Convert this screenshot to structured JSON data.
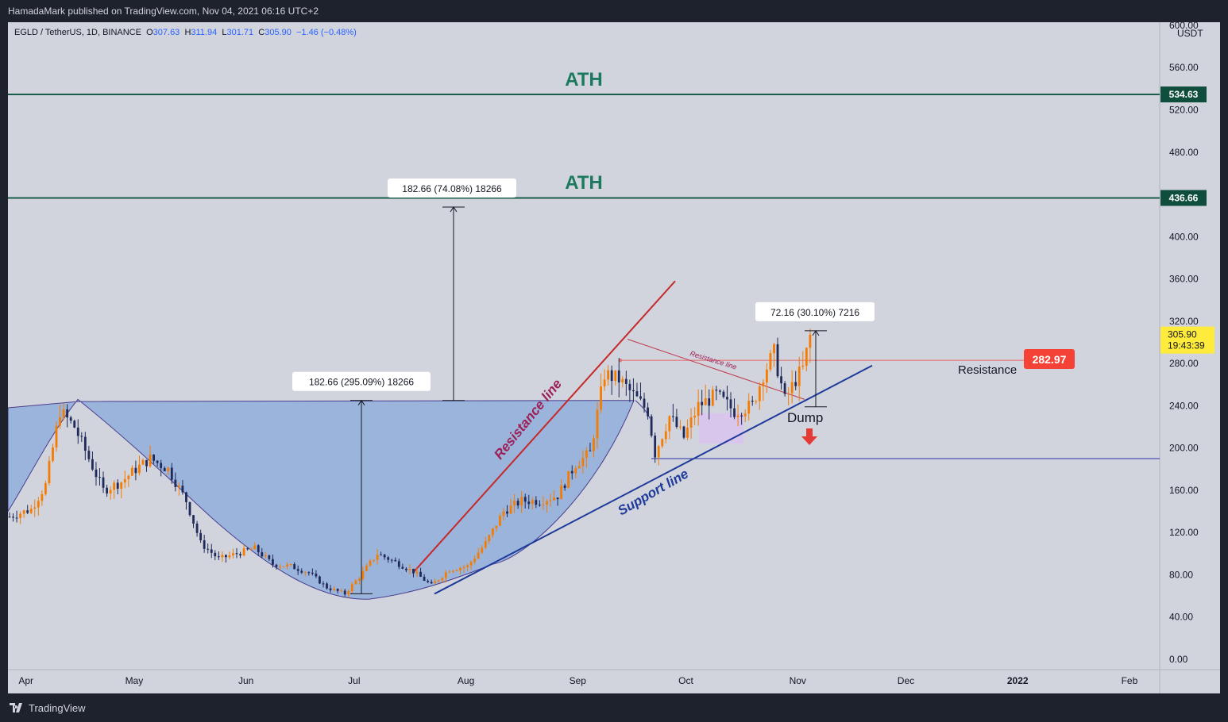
{
  "header": {
    "published": "HamadaMark published on TradingView.com, Nov 04, 2021 06:16 UTC+2"
  },
  "footer": {
    "brand": "TradingView"
  },
  "colors": {
    "up": "#f57c00",
    "down": "#1f2a5a",
    "area_fill": "#92aedc",
    "ath_line": "#1a5c4a",
    "ath_text": "#1b7a5e",
    "resistance_red": "#c62828",
    "support_blue": "#1e3a9a",
    "badge_red": "#f44336",
    "price_yellow": "#ffeb3b"
  },
  "legend": {
    "symbol": "EGLD / TetherUS, 1D, BINANCE",
    "o_label": "O",
    "o": "307.63",
    "h_label": "H",
    "h": "311.94",
    "l_label": "L",
    "l": "301.71",
    "c_label": "C",
    "c": "305.90",
    "change": "−1.46 (−0.48%)"
  },
  "price_axis": {
    "currency": "USDT",
    "labels": [
      "600.00",
      "560.00",
      "520.00",
      "480.00",
      "400.00",
      "360.00",
      "320.00",
      "280.00",
      "240.00",
      "200.00",
      "160.00",
      "120.00",
      "80.00",
      "40.00",
      "0.00"
    ],
    "last_price": "305.90",
    "countdown": "19:43:39",
    "level_badges": [
      "534.63",
      "436.66"
    ]
  },
  "time_axis": [
    "Apr",
    "May",
    "Jun",
    "Jul",
    "Aug",
    "Sep",
    "Oct",
    "Nov",
    "Dec",
    "2022",
    "Feb"
  ],
  "annotations": {
    "ath_top": "ATH",
    "ath_bottom": "ATH",
    "measure_big": "182.66 (74.08%) 18266",
    "measure_cup": "182.66 (295.09%) 18266",
    "measure_small": "72.16 (30.10%) 7216",
    "resistance_line": "Resistance line",
    "resistance_line_small": "Resistance line",
    "support_line": "Support line",
    "dump": "Dump",
    "resistance": "Resistance",
    "resistance_price": "282.97"
  },
  "chart_data": {
    "type": "candlestick",
    "title": "EGLD / TetherUS, 1D, BINANCE",
    "ylim": [
      0,
      600
    ],
    "y_unit": "USDT",
    "x_range": [
      "2021-03-27",
      "2022-02-24"
    ],
    "ohlc_last": {
      "open": 307.63,
      "high": 311.94,
      "low": 301.71,
      "close": 305.9
    },
    "levels": {
      "ath_1": 534.63,
      "ath_2": 436.66,
      "resistance": 282.97,
      "support_horizontal": 190,
      "cup_rim": 245
    },
    "close_path": [
      [
        "2021-03-27",
        135
      ],
      [
        "2021-04-02",
        142
      ],
      [
        "2021-04-06",
        165
      ],
      [
        "2021-04-10",
        235
      ],
      [
        "2021-04-14",
        220
      ],
      [
        "2021-04-18",
        190
      ],
      [
        "2021-04-22",
        160
      ],
      [
        "2021-04-27",
        168
      ],
      [
        "2021-05-01",
        180
      ],
      [
        "2021-05-05",
        190
      ],
      [
        "2021-05-10",
        180
      ],
      [
        "2021-05-15",
        150
      ],
      [
        "2021-05-19",
        110
      ],
      [
        "2021-05-24",
        95
      ],
      [
        "2021-05-29",
        100
      ],
      [
        "2021-06-03",
        105
      ],
      [
        "2021-06-08",
        90
      ],
      [
        "2021-06-13",
        88
      ],
      [
        "2021-06-18",
        82
      ],
      [
        "2021-06-23",
        68
      ],
      [
        "2021-06-28",
        62
      ],
      [
        "2021-07-02",
        78
      ],
      [
        "2021-07-07",
        100
      ],
      [
        "2021-07-12",
        92
      ],
      [
        "2021-07-17",
        83
      ],
      [
        "2021-07-22",
        70
      ],
      [
        "2021-07-27",
        85
      ],
      [
        "2021-08-01",
        88
      ],
      [
        "2021-08-06",
        110
      ],
      [
        "2021-08-11",
        140
      ],
      [
        "2021-08-16",
        150
      ],
      [
        "2021-08-21",
        150
      ],
      [
        "2021-08-26",
        155
      ],
      [
        "2021-08-31",
        185
      ],
      [
        "2021-09-04",
        195
      ],
      [
        "2021-09-08",
        270
      ],
      [
        "2021-09-12",
        265
      ],
      [
        "2021-09-16",
        250
      ],
      [
        "2021-09-20",
        235
      ],
      [
        "2021-09-22",
        195
      ],
      [
        "2021-09-26",
        230
      ],
      [
        "2021-09-30",
        210
      ],
      [
        "2021-10-04",
        240
      ],
      [
        "2021-10-09",
        250
      ],
      [
        "2021-10-14",
        235
      ],
      [
        "2021-10-19",
        240
      ],
      [
        "2021-10-22",
        270
      ],
      [
        "2021-10-25",
        290
      ],
      [
        "2021-10-28",
        245
      ],
      [
        "2021-10-31",
        265
      ],
      [
        "2021-11-02",
        275
      ],
      [
        "2021-11-04",
        305.9
      ]
    ],
    "measurements": [
      {
        "label": "182.66 (74.08%) 18266",
        "from": 245,
        "to": 428
      },
      {
        "label": "182.66 (295.09%) 18266",
        "from": 62,
        "to": 245
      },
      {
        "label": "72.16 (30.10%) 7216",
        "from": 239,
        "to": 311
      }
    ]
  }
}
